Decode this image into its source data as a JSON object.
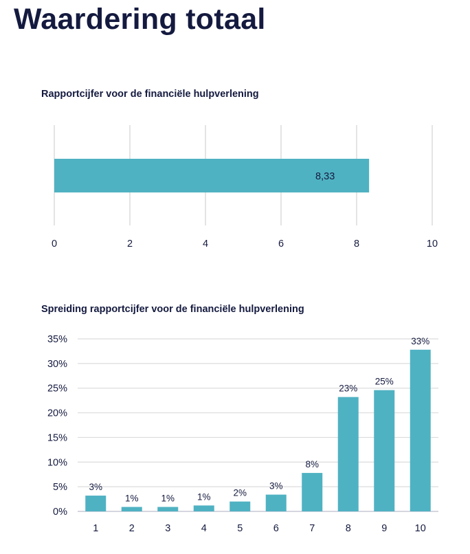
{
  "page": {
    "title": "Waardering totaal"
  },
  "colors": {
    "bar": "#4fb2c2",
    "grid": "#dcdcdc",
    "text": "#141a3f"
  },
  "chart_data": [
    {
      "type": "bar",
      "orientation": "horizontal",
      "title": "Rapportcijfer voor de financiële hulpverlening",
      "categories": [
        ""
      ],
      "values": [
        8.33
      ],
      "data_labels": [
        "8,33"
      ],
      "xlim": [
        0,
        10
      ],
      "x_ticks": [
        0,
        2,
        4,
        6,
        8,
        10
      ],
      "x_tick_labels": [
        "0",
        "2",
        "4",
        "6",
        "8",
        "10"
      ],
      "grid": true,
      "legend": "none"
    },
    {
      "type": "bar",
      "orientation": "vertical",
      "title": "Spreiding rapportcijfer voor de financiële hulpverlening",
      "categories": [
        "1",
        "2",
        "3",
        "4",
        "5",
        "6",
        "7",
        "8",
        "9",
        "10"
      ],
      "values": [
        3.2,
        0.9,
        0.9,
        1.2,
        2.0,
        3.4,
        7.8,
        23.2,
        24.6,
        32.8
      ],
      "data_labels": [
        "3%",
        "1%",
        "1%",
        "1%",
        "2%",
        "3%",
        "8%",
        "23%",
        "25%",
        "33%"
      ],
      "ylim": [
        0,
        35
      ],
      "y_ticks": [
        0,
        5,
        10,
        15,
        20,
        25,
        30,
        35
      ],
      "y_tick_labels": [
        "0%",
        "5%",
        "10%",
        "15%",
        "20%",
        "25%",
        "30%",
        "35%"
      ],
      "grid": true,
      "legend": "none"
    }
  ]
}
